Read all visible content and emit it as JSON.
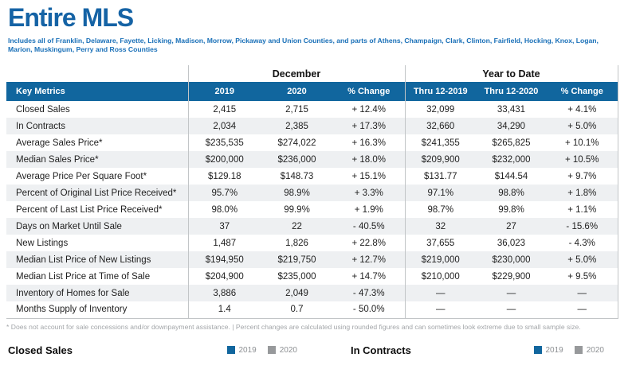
{
  "page": {
    "title": "Entire MLS",
    "subtitle": "Includes all of Franklin, Delaware, Fayette, Licking, Madison, Morrow, Pickaway and Union Counties, and parts of Athens, Champaign, Clark, Clinton, Fairfield, Hocking, Knox, Logan, Marion, Muskingum, Perry and Ross Counties"
  },
  "colors": {
    "title_blue": "#1563a5",
    "subtitle_blue": "#1a70b8",
    "header_blue": "#11669e",
    "row_stripe": "#eef0f2",
    "divider_gray": "#c2c5c7",
    "legend_2019": "#11669e",
    "legend_2020": "#97999b"
  },
  "table": {
    "group_december": "December",
    "group_ytd": "Year to Date",
    "columns": {
      "key_metrics": "Key Metrics",
      "dec_2019": "2019",
      "dec_2020": "2020",
      "dec_change": "% Change",
      "ytd_2019": "Thru 12-2019",
      "ytd_2020": "Thru 12-2020",
      "ytd_change": "% Change"
    },
    "rows": [
      {
        "label": "Closed Sales",
        "dec_2019": "2,415",
        "dec_2020": "2,715",
        "dec_change": "+ 12.4%",
        "ytd_2019": "32,099",
        "ytd_2020": "33,431",
        "ytd_change": "+ 4.1%"
      },
      {
        "label": "In Contracts",
        "dec_2019": "2,034",
        "dec_2020": "2,385",
        "dec_change": "+ 17.3%",
        "ytd_2019": "32,660",
        "ytd_2020": "34,290",
        "ytd_change": "+ 5.0%"
      },
      {
        "label": "Average Sales Price*",
        "dec_2019": "$235,535",
        "dec_2020": "$274,022",
        "dec_change": "+ 16.3%",
        "ytd_2019": "$241,355",
        "ytd_2020": "$265,825",
        "ytd_change": "+ 10.1%"
      },
      {
        "label": "Median Sales Price*",
        "dec_2019": "$200,000",
        "dec_2020": "$236,000",
        "dec_change": "+ 18.0%",
        "ytd_2019": "$209,900",
        "ytd_2020": "$232,000",
        "ytd_change": "+ 10.5%"
      },
      {
        "label": "Average Price Per Square Foot*",
        "dec_2019": "$129.18",
        "dec_2020": "$148.73",
        "dec_change": "+ 15.1%",
        "ytd_2019": "$131.77",
        "ytd_2020": "$144.54",
        "ytd_change": "+ 9.7%"
      },
      {
        "label": "Percent of Original List Price Received*",
        "dec_2019": "95.7%",
        "dec_2020": "98.9%",
        "dec_change": "+ 3.3%",
        "ytd_2019": "97.1%",
        "ytd_2020": "98.8%",
        "ytd_change": "+ 1.8%"
      },
      {
        "label": "Percent of Last List Price Received*",
        "dec_2019": "98.0%",
        "dec_2020": "99.9%",
        "dec_change": "+ 1.9%",
        "ytd_2019": "98.7%",
        "ytd_2020": "99.8%",
        "ytd_change": "+ 1.1%"
      },
      {
        "label": "Days on Market Until Sale",
        "dec_2019": "37",
        "dec_2020": "22",
        "dec_change": "- 40.5%",
        "ytd_2019": "32",
        "ytd_2020": "27",
        "ytd_change": "- 15.6%"
      },
      {
        "label": "New Listings",
        "dec_2019": "1,487",
        "dec_2020": "1,826",
        "dec_change": "+ 22.8%",
        "ytd_2019": "37,655",
        "ytd_2020": "36,023",
        "ytd_change": "- 4.3%"
      },
      {
        "label": "Median List Price of New Listings",
        "dec_2019": "$194,950",
        "dec_2020": "$219,750",
        "dec_change": "+ 12.7%",
        "ytd_2019": "$219,000",
        "ytd_2020": "$230,000",
        "ytd_change": "+ 5.0%"
      },
      {
        "label": "Median List Price at Time of Sale",
        "dec_2019": "$204,900",
        "dec_2020": "$235,000",
        "dec_change": "+ 14.7%",
        "ytd_2019": "$210,000",
        "ytd_2020": "$229,900",
        "ytd_change": "+ 9.5%"
      },
      {
        "label": "Inventory of Homes for Sale",
        "dec_2019": "3,886",
        "dec_2020": "2,049",
        "dec_change": "- 47.3%",
        "ytd_2019": "—",
        "ytd_2020": "—",
        "ytd_change": "—"
      },
      {
        "label": "Months Supply of Inventory",
        "dec_2019": "1.4",
        "dec_2020": "0.7",
        "dec_change": "- 50.0%",
        "ytd_2019": "—",
        "ytd_2020": "—",
        "ytd_change": "—"
      }
    ]
  },
  "footnote": "* Does not account for sale concessions and/or downpayment assistance. | Percent changes are calculated using rounded figures and can sometimes look extreme due to small sample size.",
  "charts": [
    {
      "title": "Closed Sales",
      "legend": [
        {
          "label": "2019",
          "color": "#11669e"
        },
        {
          "label": "2020",
          "color": "#97999b"
        }
      ]
    },
    {
      "title": "In Contracts",
      "legend": [
        {
          "label": "2019",
          "color": "#11669e"
        },
        {
          "label": "2020",
          "color": "#97999b"
        }
      ]
    }
  ]
}
